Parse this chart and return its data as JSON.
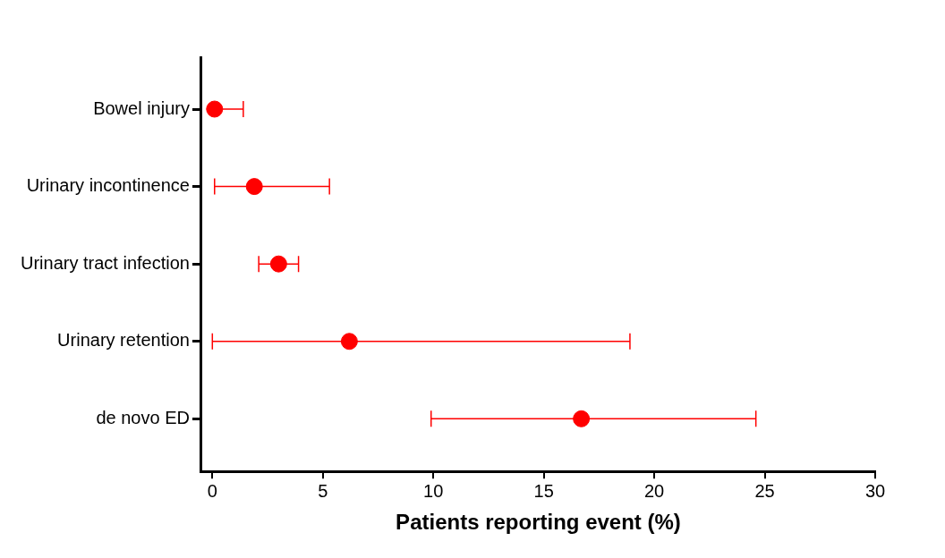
{
  "chart_data": {
    "type": "scatter",
    "orientation": "horizontal",
    "xlabel": "Patients reporting event (%)",
    "categories": [
      "Bowel injury",
      "Urinary incontinence",
      "Urinary tract infection",
      "Urinary retention",
      "de novo ED"
    ],
    "series": [
      {
        "color": "#ff0000",
        "values": [
          0.1,
          1.9,
          3.0,
          6.2,
          16.7
        ],
        "errors": [
          [
            0,
            1.4
          ],
          [
            0.1,
            5.3
          ],
          [
            2.1,
            3.9
          ],
          [
            0,
            18.9
          ],
          [
            9.9,
            24.6
          ]
        ]
      }
    ],
    "xlim": [
      -0.5,
      30
    ],
    "xticks": [
      0,
      5,
      10,
      15,
      20,
      25,
      30
    ],
    "grid": false,
    "legend": false,
    "marker": "circle"
  }
}
